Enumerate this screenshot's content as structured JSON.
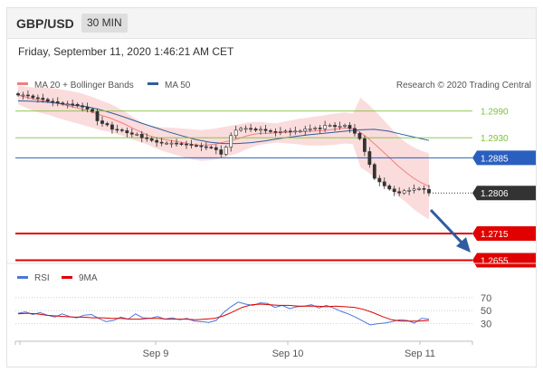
{
  "header": {
    "symbol": "GBP/USD",
    "timeframe": "30 MIN"
  },
  "datetime": "Friday, September 11, 2020 1:46:21 AM CET",
  "legend": {
    "ma20_label": "MA 20 + Bollinger Bands",
    "ma50_label": "MA 50",
    "ma20_color": "#f08080",
    "ma50_color": "#2e5c9e"
  },
  "copyright": "Research © 2020 Trading Central",
  "levels": [
    {
      "value": 1.299,
      "label": "1.2990",
      "color": "#80c040",
      "kind": "thin"
    },
    {
      "value": 1.293,
      "label": "1.2930",
      "color": "#80c040",
      "kind": "thin"
    },
    {
      "value": 1.2885,
      "label": "1.2885",
      "color": "#2a5fbf",
      "kind": "pivot"
    },
    {
      "value": 1.2806,
      "label": "1.2806",
      "color": "#333333",
      "kind": "current"
    },
    {
      "value": 1.2715,
      "label": "1.2715",
      "color": "#e00000",
      "kind": "target"
    },
    {
      "value": 1.2655,
      "label": "1.2655",
      "color": "#e00000",
      "kind": "target"
    }
  ],
  "x_labels": [
    "Sep 9",
    "Sep 10",
    "Sep 11"
  ],
  "rsi_legend": {
    "rsi_label": "RSI",
    "ma_label": "9MA",
    "rsi_color": "#4a78d8",
    "ma_color": "#e00000"
  },
  "rsi_levels": [
    70,
    50,
    30
  ],
  "chart_data": {
    "type": "candlestick",
    "price_range": [
      1.265,
      1.303
    ],
    "close": [
      1.3026,
      1.3026,
      1.3024,
      1.302,
      1.3019,
      1.3016,
      1.3012,
      1.3011,
      1.3008,
      1.3006,
      1.3006,
      1.3005,
      1.3002,
      1.2999,
      1.2994,
      1.2989,
      1.2968,
      1.2962,
      1.2959,
      1.2949,
      1.2948,
      1.2946,
      1.2941,
      1.2938,
      1.2938,
      1.293,
      1.2928,
      1.2924,
      1.292,
      1.2918,
      1.2918,
      1.2918,
      1.2917,
      1.2916,
      1.2915,
      1.2913,
      1.2912,
      1.291,
      1.2909,
      1.2908,
      1.2903,
      1.2893,
      1.2909,
      1.2935,
      1.2947,
      1.2951,
      1.2951,
      1.295,
      1.2947,
      1.2949,
      1.2946,
      1.2944,
      1.2943,
      1.2944,
      1.2945,
      1.2944,
      1.2945,
      1.2945,
      1.295,
      1.295,
      1.2952,
      1.295,
      1.2958,
      1.2958,
      1.2955,
      1.2956,
      1.2958,
      1.2951,
      1.294,
      1.2928,
      1.2899,
      1.287,
      1.2839,
      1.2831,
      1.2822,
      1.2815,
      1.2809,
      1.2806,
      1.2811,
      1.2812,
      1.2815,
      1.2816,
      1.2814,
      1.2806
    ],
    "ma20": [
      1.3026,
      1.3021,
      1.3017,
      1.3014,
      1.3012,
      1.3008,
      1.3004,
      1.3,
      1.2996,
      1.2991,
      1.2986,
      1.298,
      1.2975,
      1.2968,
      1.2961,
      1.2952,
      1.2944,
      1.2936,
      1.2931,
      1.2927,
      1.2924,
      1.2921,
      1.2918,
      1.2915,
      1.2913,
      1.2914,
      1.2916,
      1.292,
      1.2924,
      1.2928,
      1.2934,
      1.2938,
      1.294,
      1.294,
      1.2941,
      1.2942,
      1.2943,
      1.2944,
      1.2944,
      1.2945,
      1.2946,
      1.2948,
      1.295,
      1.2952,
      1.295,
      1.2942,
      1.2929,
      1.2914,
      1.2898,
      1.2882,
      1.2866,
      1.2852,
      1.2839,
      1.2829,
      1.2821
    ],
    "ma50": [
      1.3013,
      1.3012,
      1.301,
      1.3007,
      1.3003,
      1.3,
      1.2993,
      1.2984,
      1.2974,
      1.2963,
      1.2953,
      1.2943,
      1.2934,
      1.2926,
      1.292,
      1.2917,
      1.2917,
      1.2919,
      1.2923,
      1.2928,
      1.2932,
      1.2936,
      1.2939,
      1.2942,
      1.2945,
      1.2948,
      1.2949,
      1.2945,
      1.2938,
      1.2931,
      1.2924
    ],
    "rsi": [
      46,
      48,
      44,
      47,
      43,
      40,
      45,
      41,
      39,
      43,
      44,
      38,
      33,
      35,
      40,
      37,
      45,
      39,
      38,
      41,
      37,
      39,
      36,
      38,
      34,
      33,
      32,
      35,
      47,
      56,
      63,
      60,
      58,
      62,
      61,
      55,
      58,
      53,
      56,
      57,
      59,
      54,
      58,
      54,
      49,
      45,
      40,
      34,
      28,
      30,
      31,
      33,
      36,
      35,
      31,
      38,
      37
    ],
    "rsi_ma": [
      45,
      46,
      45,
      43,
      42,
      41,
      40,
      40,
      39,
      39,
      38,
      38,
      37,
      37,
      38,
      38,
      37,
      37,
      37,
      36,
      37,
      38,
      42,
      48,
      55,
      59,
      60,
      59,
      58,
      58,
      57,
      57,
      57,
      56,
      57,
      56,
      55,
      52,
      47,
      41,
      36,
      34,
      34,
      34,
      35
    ]
  }
}
